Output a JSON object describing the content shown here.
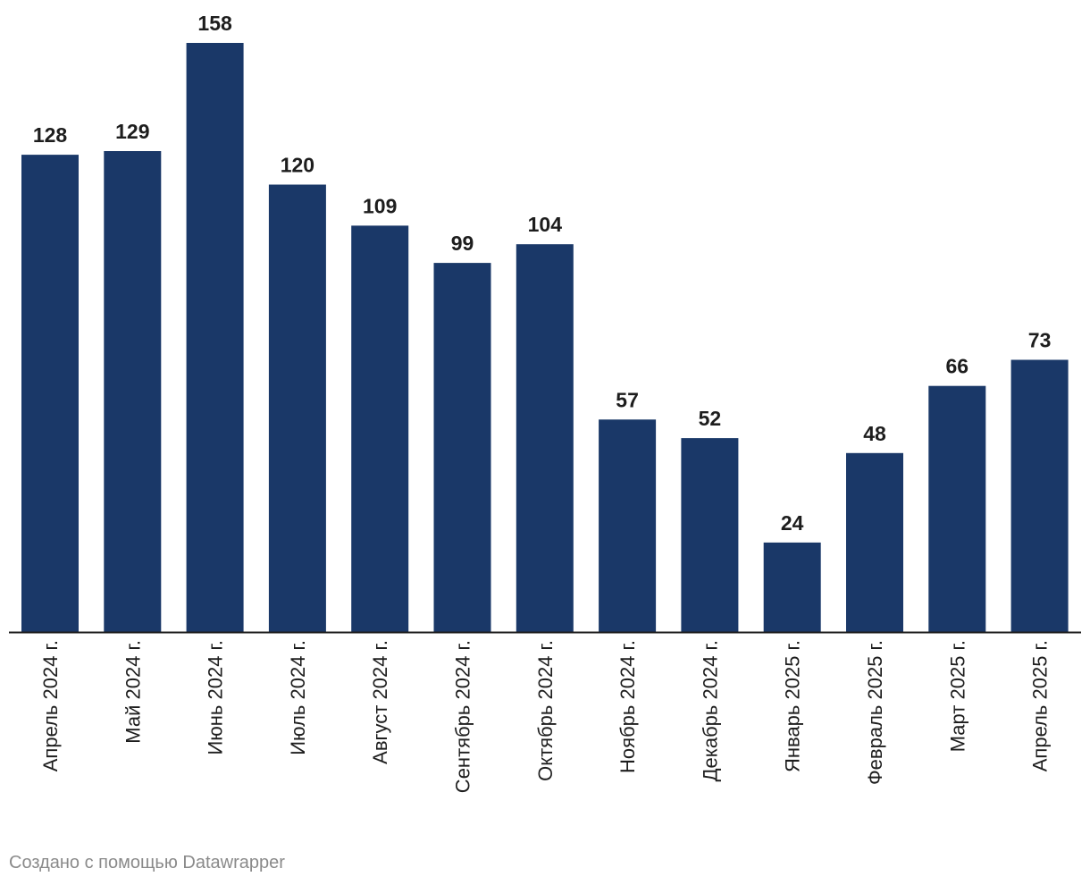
{
  "chart_data": {
    "type": "bar",
    "categories": [
      "Апрель 2024 г.",
      "Май 2024 г.",
      "Июнь 2024 г.",
      "Июль 2024 г.",
      "Август 2024 г.",
      "Сентябрь 2024 г.",
      "Октябрь 2024 г.",
      "Ноябрь 2024 г.",
      "Декабрь 2024 г.",
      "Январь 2025 г.",
      "Февраль 2025 г.",
      "Март 2025 г.",
      "Апрель 2025 г."
    ],
    "values": [
      128,
      129,
      158,
      120,
      109,
      99,
      104,
      57,
      52,
      24,
      48,
      66,
      73
    ],
    "ylim": [
      0,
      158
    ],
    "bar_color": "#1a3868",
    "axis_color": "#1d1d1d",
    "grid": false,
    "data_labels": true
  },
  "footer": {
    "credit": "Создано с помощью Datawrapper"
  }
}
